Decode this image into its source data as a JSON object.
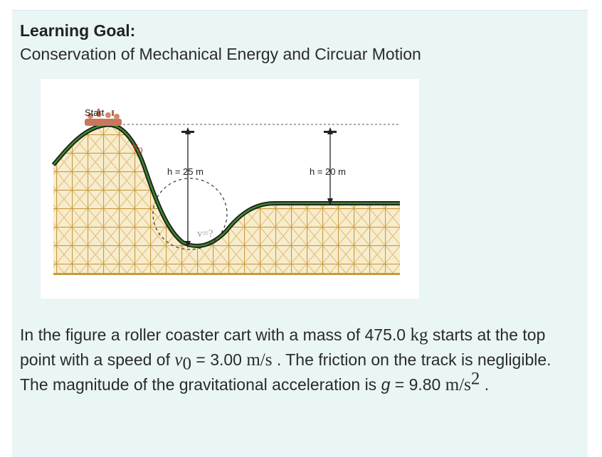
{
  "header": {
    "title": "Learning Goal:",
    "subtitle": "Conservation of Mechanical Energy and Circuar Motion"
  },
  "figure": {
    "start_label": "Start",
    "v0_label": "v",
    "v0_sub": "0",
    "h1_label": "h = 25 m",
    "h2_label": "h = 20 m",
    "v_unknown_label": "v=?",
    "colors": {
      "track_outer": "#1a1a1a",
      "track_inner": "#3a8a2a",
      "scaffold": "#d9b25f",
      "velocity_text": "#c0282a"
    }
  },
  "problem": {
    "p1": "In the figure a roller coaster cart with a mass of 475.0 ",
    "mass_unit": "kg",
    "p2": " starts at the top point with a speed of ",
    "v0_var": "v",
    "v0_sub": "0",
    "p3": " = 3.00 ",
    "speed_unit": "m/s",
    "p4": " . The friction on the track is negligible. The magnitude of the gravitational acceleration is ",
    "g_var": "g",
    "p5": " = 9.80 ",
    "g_unit": "m/s",
    "g_exp": "2",
    "p6": " ."
  }
}
